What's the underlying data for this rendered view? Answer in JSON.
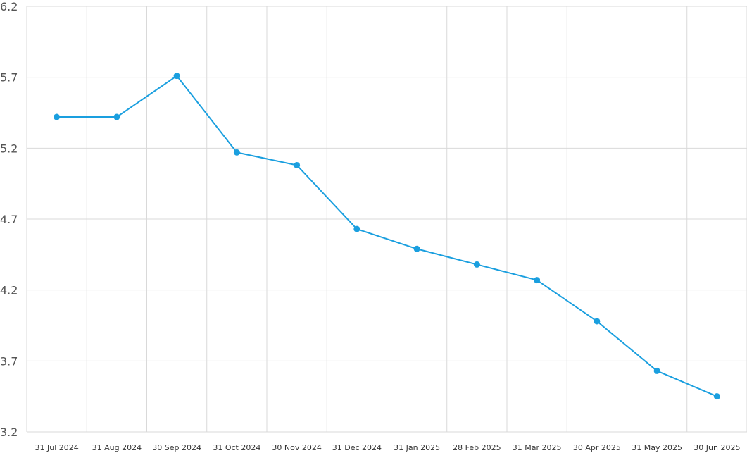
{
  "chart_data": {
    "type": "line",
    "title": "",
    "xlabel": "",
    "ylabel": "",
    "categories": [
      "31 Jul 2024",
      "31 Aug 2024",
      "30 Sep 2024",
      "31 Oct 2024",
      "30 Nov 2024",
      "31 Dec 2024",
      "31 Jan 2025",
      "28 Feb 2025",
      "31 Mar 2025",
      "30 Apr 2025",
      "31 May 2025",
      "30 Jun 2025"
    ],
    "series": [
      {
        "values": [
          5.42,
          5.42,
          5.71,
          5.17,
          5.08,
          4.63,
          4.49,
          4.38,
          4.27,
          3.98,
          3.63,
          3.45
        ],
        "color": "#1a9fdf"
      }
    ],
    "ylim": [
      3.2,
      6.2
    ],
    "yticks": [
      "3.2",
      "3.7",
      "4.2",
      "4.7",
      "5.2",
      "5.7",
      "6.2"
    ],
    "grid": true,
    "legend": "none"
  }
}
